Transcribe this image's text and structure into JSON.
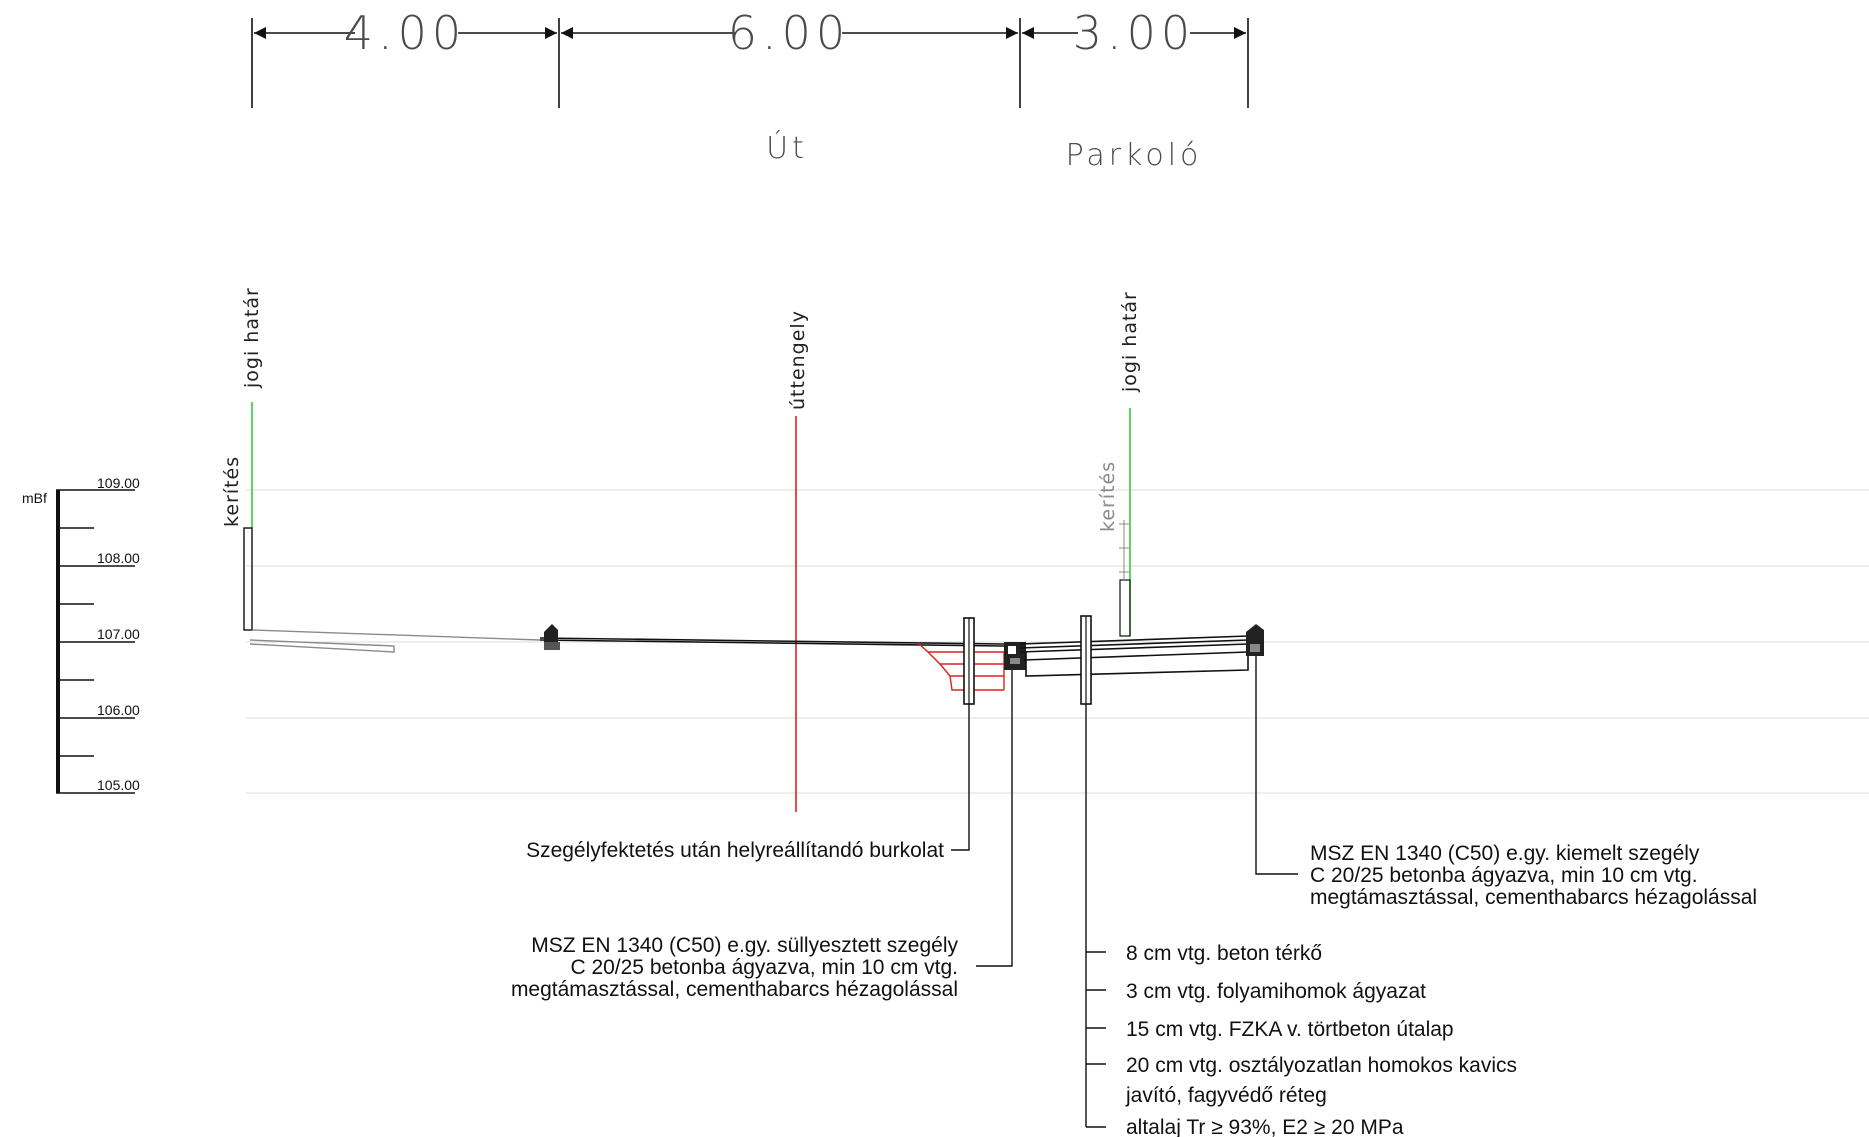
{
  "dimensions": {
    "left_width": "4.00",
    "road_width": "6.00",
    "parking_width": "3.00"
  },
  "zones": {
    "road": "Út",
    "parking": "Parkoló"
  },
  "labels": {
    "legal_boundary_left": "jogi határ",
    "legal_boundary_right": "jogi határ",
    "road_axis": "úttengely",
    "fence_left": "kerítés",
    "fence_right": "kerítés"
  },
  "elevation_scale": {
    "unit": "mBf",
    "levels": [
      "109.00",
      "108.00",
      "107.00",
      "106.00",
      "105.00"
    ]
  },
  "notes": {
    "pavement_restore": "Szegélyfektetés után helyreállítandó burkolat",
    "sunken_curb": [
      "MSZ EN 1340 (C50) e.gy. süllyesztett szegély",
      "C 20/25 betonba ágyazva, min 10 cm vtg.",
      "megtámasztással, cementhabarcs hézagolással"
    ],
    "raised_curb": [
      "MSZ EN 1340 (C50) e.gy. kiemelt szegély",
      "C 20/25 betonba ágyazva, min 10 cm vtg.",
      "megtámasztással, cementhabarcs hézagolással"
    ],
    "layers": [
      "8 cm vtg. beton térkő",
      "3 cm vtg. folyamihomok ágyazat",
      "15 cm vtg. FZKA v. törtbeton útalap",
      "20 cm vtg. osztályozatlan homokos kavics",
      "javító, fagyvédő réteg",
      "altalaj Tr ≥ 93%, E2 ≥ 20 MPa"
    ]
  },
  "colors": {
    "legal_boundary": "#33cc33",
    "road_axis": "#e02020",
    "restore_pavement": "#e02020",
    "gridline": "#d9d9d9",
    "line": "#000000"
  }
}
